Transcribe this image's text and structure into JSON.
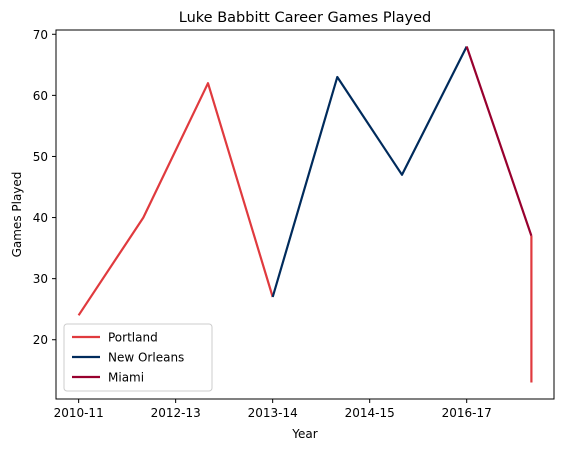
{
  "chart_data": {
    "type": "line",
    "title": "Luke Babbitt Career Games Played",
    "xlabel": "Year",
    "ylabel": "Games Played",
    "x_ticks": [
      {
        "pos": 0,
        "label": "2010-11"
      },
      {
        "pos": 1.5,
        "label": "2012-13"
      },
      {
        "pos": 3,
        "label": "2013-14"
      },
      {
        "pos": 4.5,
        "label": "2014-15"
      },
      {
        "pos": 6,
        "label": "2016-17"
      }
    ],
    "y_ticks": [
      20,
      30,
      40,
      50,
      60,
      70
    ],
    "xlim": [
      -0.35,
      7.35
    ],
    "ylim": [
      10.3,
      70.7
    ],
    "grid": false,
    "legend_position": "lower-left",
    "series": [
      {
        "name": "Portland",
        "color": "#E03A3E",
        "points": [
          [
            0,
            24
          ],
          [
            1,
            40
          ],
          [
            2,
            62
          ],
          [
            3,
            27
          ]
        ]
      },
      {
        "name": "New Orleans",
        "color": "#002B5C",
        "points": [
          [
            3,
            27
          ],
          [
            4,
            63
          ],
          [
            5,
            47
          ],
          [
            6,
            68
          ]
        ]
      },
      {
        "name": "Miami",
        "color": "#98002E",
        "points": [
          [
            6,
            68
          ],
          [
            7,
            37
          ]
        ]
      },
      {
        "name": "",
        "color": "#E03A3E",
        "points": [
          [
            7,
            37
          ],
          [
            7,
            13
          ]
        ]
      }
    ]
  }
}
